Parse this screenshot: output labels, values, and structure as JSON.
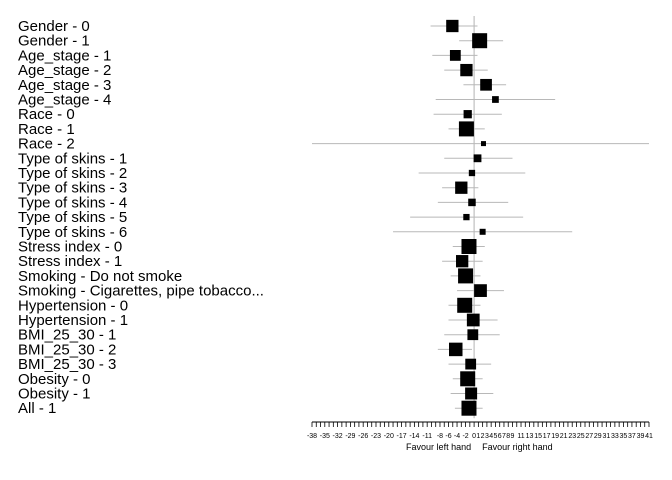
{
  "chart_data": {
    "type": "forest",
    "xlim": [
      -38,
      41
    ],
    "x_axis_labels": [
      "-38",
      "-35",
      "-32",
      "-29",
      "-26",
      "-23",
      "-20",
      "-17",
      "-14",
      "-11",
      "-8",
      "-6",
      "-4",
      "-2",
      "0",
      "1",
      "2",
      "3",
      "4",
      "5",
      "6",
      "7",
      "8",
      "9",
      "11",
      "13",
      "15",
      "17",
      "19",
      "21",
      "23",
      "25",
      "27",
      "29",
      "31",
      "33",
      "35",
      "37",
      "39",
      "41"
    ],
    "axis_left_text": "Favour left hand",
    "axis_right_text": "Favour right hand",
    "rows": [
      {
        "label": "Gender - 0",
        "estimate": -5.1,
        "lower": -10.2,
        "upper": 0.8,
        "weight": 0.82
      },
      {
        "label": "Gender - 1",
        "estimate": 1.3,
        "lower": -3.5,
        "upper": 6.8,
        "weight": 1.0
      },
      {
        "label": "Age_stage - 1",
        "estimate": -4.4,
        "lower": -9.8,
        "upper": 0.8,
        "weight": 0.72
      },
      {
        "label": "Age_stage - 2",
        "estimate": -1.8,
        "lower": -7.0,
        "upper": 3.2,
        "weight": 0.82
      },
      {
        "label": "Age_stage - 3",
        "estimate": 2.8,
        "lower": -2.5,
        "upper": 7.5,
        "weight": 0.78
      },
      {
        "label": "Age_stage - 4",
        "estimate": 5.0,
        "lower": -9.0,
        "upper": 19.0,
        "weight": 0.45
      },
      {
        "label": "Race - 0",
        "estimate": -1.5,
        "lower": -9.5,
        "upper": 6.5,
        "weight": 0.55
      },
      {
        "label": "Race - 1",
        "estimate": -1.8,
        "lower": -6.0,
        "upper": 2.5,
        "weight": 1.0
      },
      {
        "label": "Race - 2",
        "estimate": 2.2,
        "lower": -38,
        "upper": 41,
        "weight": 0.3
      },
      {
        "label": "Type of skins - 1",
        "estimate": 0.8,
        "lower": -7.0,
        "upper": 9.0,
        "weight": 0.52
      },
      {
        "label": "Type of skins - 2",
        "estimate": -0.5,
        "lower": -13.0,
        "upper": 12.0,
        "weight": 0.42
      },
      {
        "label": "Type of skins - 3",
        "estimate": -3.0,
        "lower": -7.5,
        "upper": 1.0,
        "weight": 0.82
      },
      {
        "label": "Type of skins - 4",
        "estimate": -0.5,
        "lower": -8.5,
        "upper": 8.0,
        "weight": 0.5
      },
      {
        "label": "Type of skins - 5",
        "estimate": -1.8,
        "lower": -15.0,
        "upper": 11.5,
        "weight": 0.42
      },
      {
        "label": "Type of skins - 6",
        "estimate": 2.0,
        "lower": -19.0,
        "upper": 23.0,
        "weight": 0.4
      },
      {
        "label": "Stress index - 0",
        "estimate": -1.2,
        "lower": -5.0,
        "upper": 2.5,
        "weight": 1.0
      },
      {
        "label": "Stress index - 1",
        "estimate": -2.8,
        "lower": -7.5,
        "upper": 2.0,
        "weight": 0.82
      },
      {
        "label": "Smoking - Do not smoke",
        "estimate": -2.0,
        "lower": -5.5,
        "upper": 1.5,
        "weight": 1.0
      },
      {
        "label": "Smoking - Cigarettes, pipe tobacco...",
        "estimate": 1.5,
        "lower": -4.0,
        "upper": 7.0,
        "weight": 0.85
      },
      {
        "label": "Hypertension - 0",
        "estimate": -2.2,
        "lower": -6.0,
        "upper": 1.5,
        "weight": 1.0
      },
      {
        "label": "Hypertension - 1",
        "estimate": -0.2,
        "lower": -6.0,
        "upper": 5.5,
        "weight": 0.85
      },
      {
        "label": "BMI_25_30 - 1",
        "estimate": -0.3,
        "lower": -7.0,
        "upper": 6.0,
        "weight": 0.72
      },
      {
        "label": "BMI_25_30 - 2",
        "estimate": -4.3,
        "lower": -8.5,
        "upper": -0.5,
        "weight": 0.9
      },
      {
        "label": "BMI_25_30 - 3",
        "estimate": -0.8,
        "lower": -6.0,
        "upper": 4.0,
        "weight": 0.72
      },
      {
        "label": "Obesity - 0",
        "estimate": -1.5,
        "lower": -5.0,
        "upper": 2.0,
        "weight": 1.0
      },
      {
        "label": "Obesity - 1",
        "estimate": -0.7,
        "lower": -5.5,
        "upper": 4.5,
        "weight": 0.8
      },
      {
        "label": "All - 1",
        "estimate": -1.2,
        "lower": -4.5,
        "upper": 2.0,
        "weight": 1.0
      }
    ]
  }
}
